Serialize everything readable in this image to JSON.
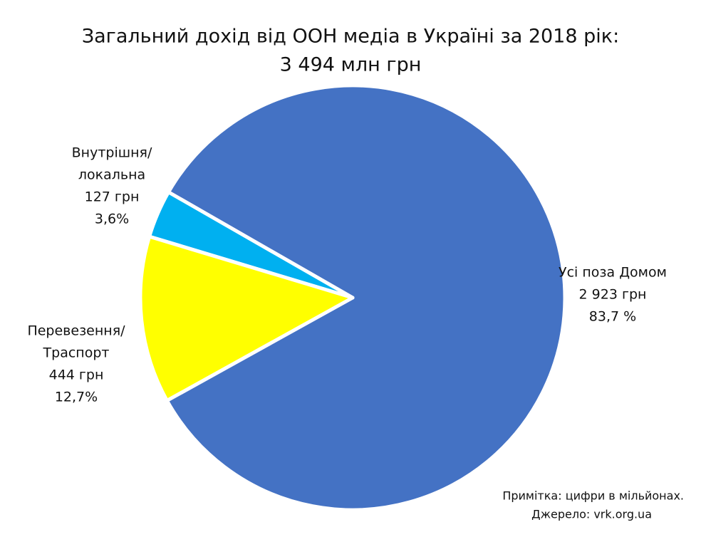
{
  "chart_data": {
    "type": "pie",
    "title": [
      "Загальний дохід від ООН медіа в Україні за 2018 рік:",
      "3 494 млн грн"
    ],
    "categories": [
      [
        "Усі поза Домом"
      ],
      [
        "Внутрішня/",
        "локальна"
      ],
      [
        "Перевезення/",
        "Траспорт"
      ]
    ],
    "values": [
      2923,
      127,
      444
    ],
    "value_labels": [
      "2 923 грн",
      "127 грн",
      "444 грн"
    ],
    "percents": [
      83.7,
      3.6,
      12.7
    ],
    "percent_labels": [
      "83,7 %",
      "3,6%",
      "12,7%"
    ],
    "colors": [
      "#4472c4",
      "#00b0f0",
      "#ffff00"
    ],
    "notes": [
      "Примітка: цифри в мільйонах.",
      "Джерело: vrk.org.ua"
    ]
  }
}
